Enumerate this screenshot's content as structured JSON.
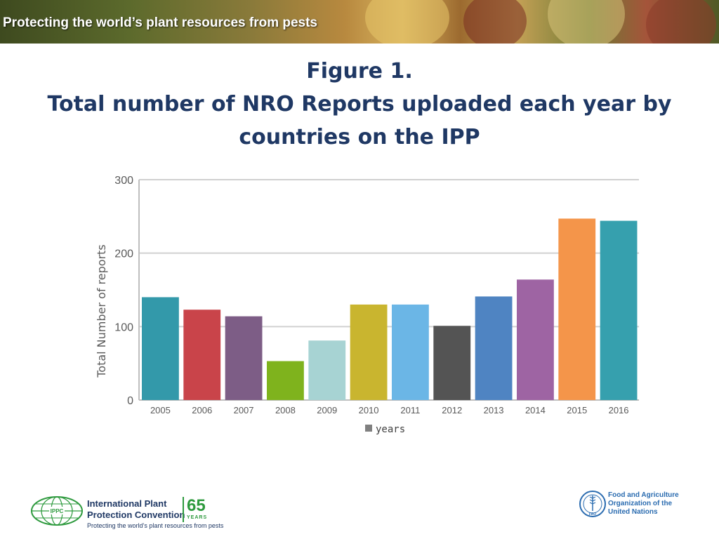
{
  "banner": {
    "text": "Protecting the world’s plant resources from pests"
  },
  "title": {
    "line1": "Figure 1.",
    "line2": "Total number of NRO Reports uploaded each year by",
    "line3": "countries on the IPP"
  },
  "chart_data": {
    "type": "bar",
    "categories": [
      "2005",
      "2006",
      "2007",
      "2008",
      "2009",
      "2010",
      "2011",
      "2012",
      "2013",
      "2014",
      "2015",
      "2016"
    ],
    "values": [
      140,
      123,
      114,
      53,
      81,
      130,
      130,
      101,
      141,
      164,
      247,
      244
    ],
    "colors": [
      "#3399aa",
      "#c9444a",
      "#7d5d86",
      "#7fb31d",
      "#a7d3d3",
      "#c9b52f",
      "#6bb6e6",
      "#545454",
      "#4f84c2",
      "#9e64a3",
      "#f4954a",
      "#36a0ae"
    ],
    "ylabel": "Total Number of reports",
    "xlabel": "",
    "ylim": [
      0,
      300
    ],
    "yticks": [
      0,
      100,
      200,
      300
    ],
    "grid": true,
    "legend": {
      "label": "years",
      "color": "#808080",
      "placement": "bottom-center"
    }
  },
  "footer": {
    "ippc_line1": "International Plant",
    "ippc_line2": "Protection Convention",
    "ippc_years_number": "65",
    "ippc_years_word": "YEARS",
    "ippc_tagline": "Protecting the world’s plant resources from pests",
    "ippc_logo_text": "IPPC",
    "fao_line1": "Food and Agriculture",
    "fao_line2": "Organization of the",
    "fao_line3": "United Nations",
    "fao_logo_text": "FAO"
  }
}
